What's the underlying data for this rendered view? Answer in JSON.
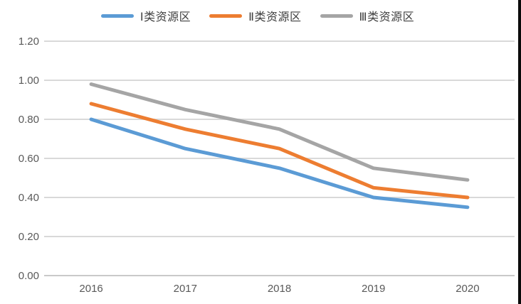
{
  "chart_data": {
    "type": "line",
    "title": "",
    "xlabel": "",
    "ylabel": "",
    "categories": [
      "2016",
      "2017",
      "2018",
      "2019",
      "2020"
    ],
    "series": [
      {
        "name": "Ⅰ类资源区",
        "color": "#5B9BD5",
        "values": [
          0.8,
          0.65,
          0.55,
          0.4,
          0.35
        ]
      },
      {
        "name": "Ⅱ类资源区",
        "color": "#ED7D31",
        "values": [
          0.88,
          0.75,
          0.65,
          0.45,
          0.4
        ]
      },
      {
        "name": "Ⅲ类资源区",
        "color": "#A5A5A5",
        "values": [
          0.98,
          0.85,
          0.75,
          0.55,
          0.49
        ]
      }
    ],
    "ylim": [
      0.0,
      1.2
    ],
    "y_ticks": [
      "0.00",
      "0.20",
      "0.40",
      "0.60",
      "0.80",
      "1.00",
      "1.20"
    ],
    "grid": true,
    "legend_position": "top"
  },
  "colors": {
    "gridline": "#D9D9D9",
    "axis_line": "#C9C9C9",
    "axis_label": "#595959",
    "legend_text": "#404040",
    "background": "#FFFFFF",
    "right_edge_bar": "#0A0A0A"
  },
  "style": {
    "line_width": 5,
    "gridline_width": 2
  }
}
